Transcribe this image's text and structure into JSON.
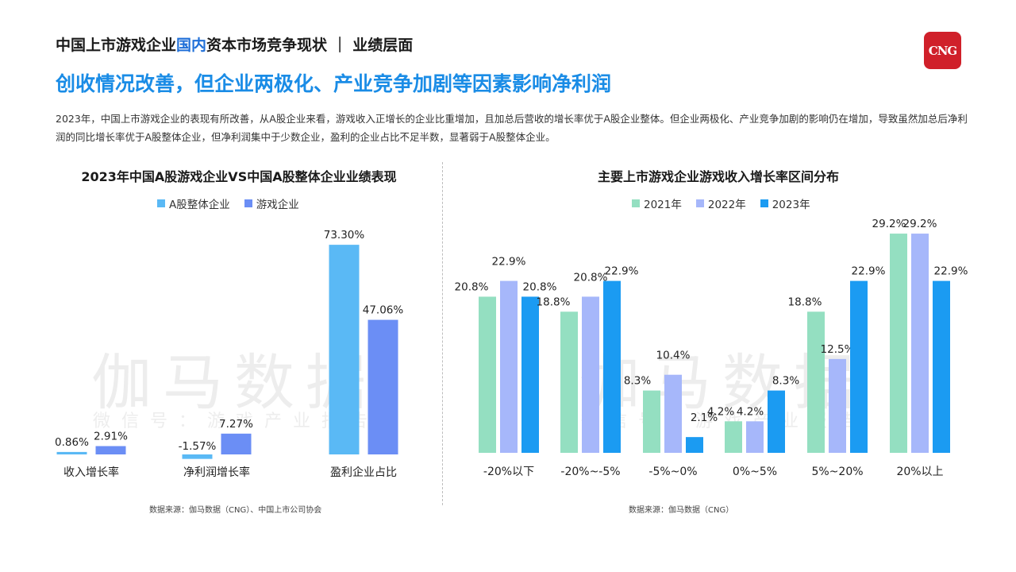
{
  "header": {
    "title_part1": "中国上市游戏企业",
    "title_highlight": "国内",
    "title_part2": "资本市场竞争现状 ｜ 业绩层面",
    "headline": "创收情况改善，但企业两极化、产业竞争加剧等因素影响净利润",
    "intro": "2023年，中国上市游戏企业的表现有所改善，从A股企业来看，游戏收入正增长的企业比重增加，且加总后营收的增长率优于A股企业整体。但企业两极化、产业竞争加剧的影响仍在增加，导致虽然加总后净利润的同比增长率优于A股整体企业，但净利润集中于少数企业，盈利的企业占比不足半数，显著弱于A股整体企业。",
    "logo_text": "CNG"
  },
  "watermark": {
    "main": "伽马数据",
    "sub": "微信号：游戏产业报告"
  },
  "colors": {
    "a_share": "#5ab9f5",
    "game": "#6b8ef5",
    "y2021": "#94dfc1",
    "y2022": "#a6b7fa",
    "y2023": "#1b9bf2"
  },
  "left_chart": {
    "source": "数据来源：伽马数据（CNG）、中国上市公司协会"
  },
  "right_chart": {
    "source": "数据来源：伽马数据（CNG）"
  },
  "chart_data": [
    {
      "type": "bar",
      "title": "2023年中国A股游戏企业VS中国A股整体企业业绩表现",
      "categories": [
        "收入增长率",
        "净利润增长率",
        "盈利企业占比"
      ],
      "series": [
        {
          "name": "A股整体企业",
          "values": [
            0.86,
            -1.57,
            73.3
          ],
          "labels": [
            "0.86%",
            "-1.57%",
            "73.30%"
          ]
        },
        {
          "name": "游戏企业",
          "values": [
            2.91,
            7.27,
            47.06
          ],
          "labels": [
            "2.91%",
            "7.27%",
            "47.06%"
          ]
        }
      ],
      "unit": "%"
    },
    {
      "type": "bar",
      "title": "主要上市游戏企业游戏收入增长率区间分布",
      "categories": [
        "-20%以下",
        "-20%~-5%",
        "-5%~0%",
        "0%~5%",
        "5%~20%",
        "20%以上"
      ],
      "series": [
        {
          "name": "2021年",
          "values": [
            20.8,
            18.8,
            8.3,
            4.2,
            18.8,
            29.2
          ]
        },
        {
          "name": "2022年",
          "values": [
            22.9,
            20.8,
            10.4,
            4.2,
            12.5,
            29.2
          ]
        },
        {
          "name": "2023年",
          "values": [
            20.8,
            22.9,
            2.1,
            8.3,
            22.9,
            22.9
          ]
        }
      ],
      "unit": "%"
    }
  ]
}
